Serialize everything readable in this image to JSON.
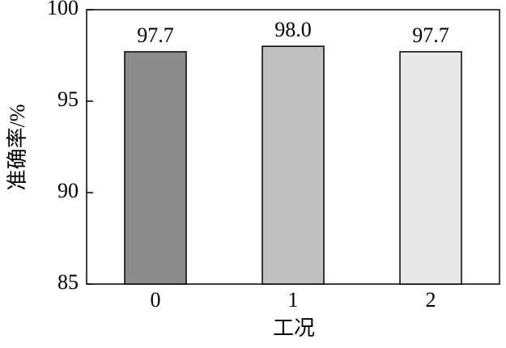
{
  "chart_data": {
    "type": "bar",
    "y_label": "准确率/%",
    "x_label": "工况",
    "categories": [
      "0",
      "1",
      "2"
    ],
    "values": [
      97.7,
      98.0,
      97.7
    ],
    "value_labels": [
      "97.7",
      "98.0",
      "97.7"
    ],
    "colors": [
      "#8c8c8c",
      "#c0c0c0",
      "#e8e8e8"
    ],
    "ylim": [
      85,
      100
    ],
    "yticks": [
      85,
      90,
      95,
      100
    ]
  }
}
